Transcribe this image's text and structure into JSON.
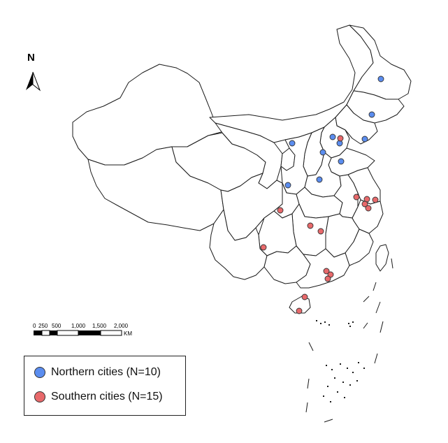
{
  "north_arrow": {
    "label": "N",
    "icon": "north-arrow-icon"
  },
  "scale_bar": {
    "ticks": [
      "0",
      "250",
      "500",
      "1,000",
      "1,500",
      "2,000"
    ],
    "unit": "KM"
  },
  "legend": {
    "items": [
      {
        "label": "Northern cities (N=10)",
        "color": "#5b8def"
      },
      {
        "label": "Southern cities (N=15)",
        "color": "#e8696b"
      }
    ]
  },
  "colors": {
    "northern": "#5b8def",
    "southern": "#e8696b",
    "outline": "#1a1a1a"
  }
}
